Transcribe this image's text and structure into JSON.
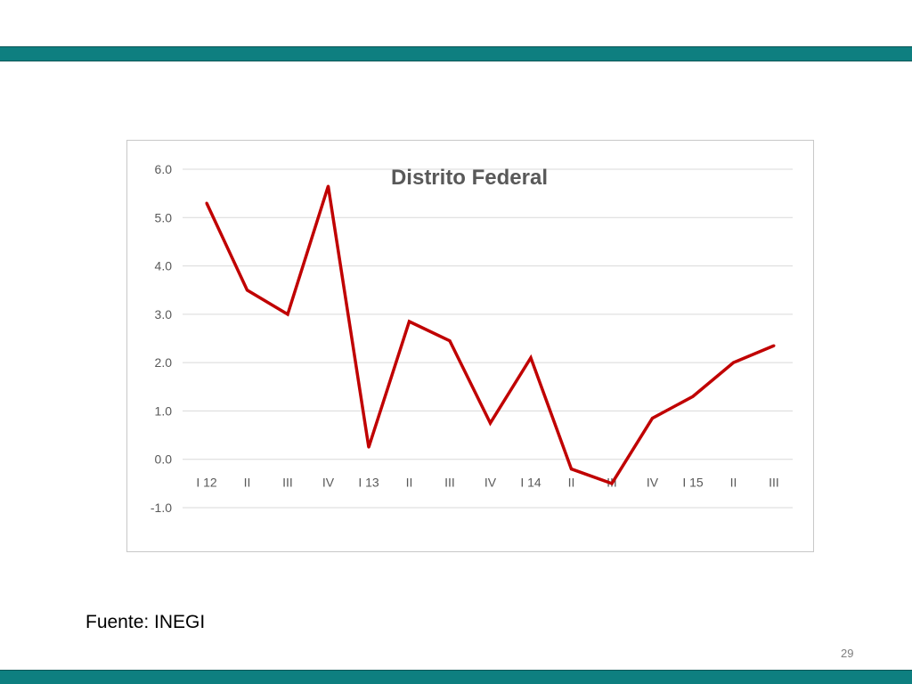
{
  "slide": {
    "source": "Fuente: INEGI",
    "page_number": "29",
    "band_color": "#0e7f80"
  },
  "chart_data": {
    "type": "line",
    "title": "Distrito Federal",
    "xlabel": "",
    "ylabel": "",
    "categories": [
      "I 12",
      "II",
      "III",
      "IV",
      "I 13",
      "II",
      "III",
      "IV",
      "I 14",
      "II",
      "III",
      "IV",
      "I 15",
      "II",
      "III"
    ],
    "series": [
      {
        "values": [
          5.3,
          3.5,
          3.0,
          5.65,
          0.25,
          2.85,
          2.45,
          0.75,
          2.1,
          -0.2,
          -0.5,
          0.85,
          1.3,
          2.0,
          2.35
        ],
        "color": "#c00000"
      }
    ],
    "yticks": [
      "6.0",
      "5.0",
      "4.0",
      "3.0",
      "2.0",
      "1.0",
      "0.0",
      "-1.0"
    ],
    "ylim": [
      -1,
      6
    ],
    "grid": true,
    "legend": "none"
  }
}
